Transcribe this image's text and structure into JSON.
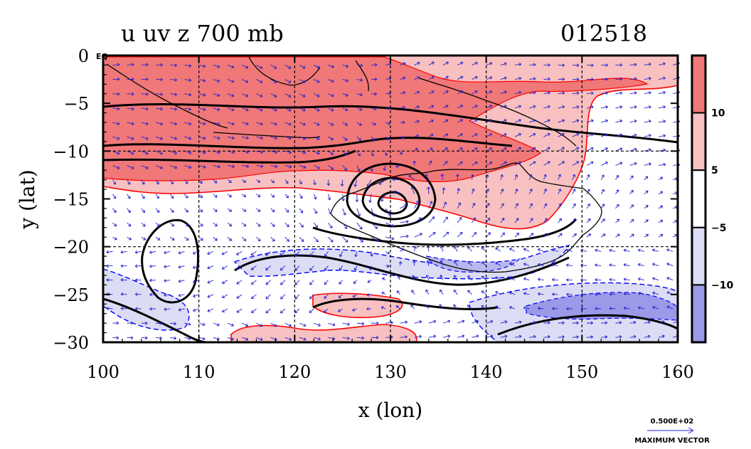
{
  "title": {
    "left": "u uv z 700 mb",
    "right": "012518"
  },
  "corner_label": "EQ",
  "axes": {
    "xlabel": "x (lon)",
    "ylabel": "y (lat)",
    "x_ticks": [
      "100",
      "110",
      "120",
      "130",
      "140",
      "150",
      "160"
    ],
    "y_ticks": [
      "0",
      "−5",
      "−10",
      "−15",
      "−20",
      "−25",
      "−30"
    ],
    "x_range": [
      100,
      160
    ],
    "y_range": [
      -30,
      0
    ],
    "grid": "dashed at 10 degree intervals"
  },
  "colorbar": {
    "labels": [
      "10",
      "5",
      "−5",
      "−10"
    ],
    "colors": [
      "#f07878",
      "#f8c0c0",
      "#ffffff",
      "#dcdcf4",
      "#9a9ae8"
    ]
  },
  "vector_key": {
    "value": "0.500E+02",
    "label": "MAXIMUM VECTOR"
  },
  "colors": {
    "strong_positive": "#f07878",
    "positive": "#f8c0c0",
    "negative": "#dcdcf4",
    "strong_negative": "#9a9ae8",
    "contour": "#000000",
    "positive_line": "#ff0000",
    "negative_line": "#0000ff",
    "vectors": "#2222cc"
  }
}
